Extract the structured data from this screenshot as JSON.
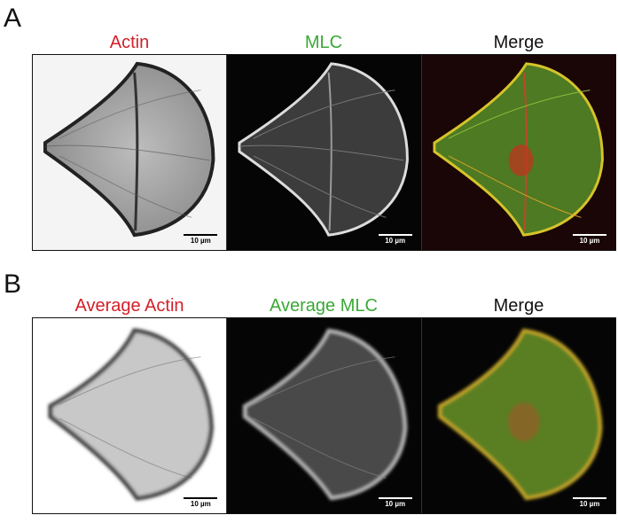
{
  "panels": [
    {
      "letter": "A",
      "titles": {
        "actin": "Actin",
        "mlc": "MLC",
        "merge": "Merge"
      },
      "scale_label": "10 µm"
    },
    {
      "letter": "B",
      "titles": {
        "actin": "Average Actin",
        "mlc": "Average MLC",
        "merge": "Merge"
      },
      "scale_label": "10 µm"
    }
  ],
  "colors": {
    "actin": "#d3202a",
    "mlc": "#3aa935",
    "merge": "#111111"
  }
}
